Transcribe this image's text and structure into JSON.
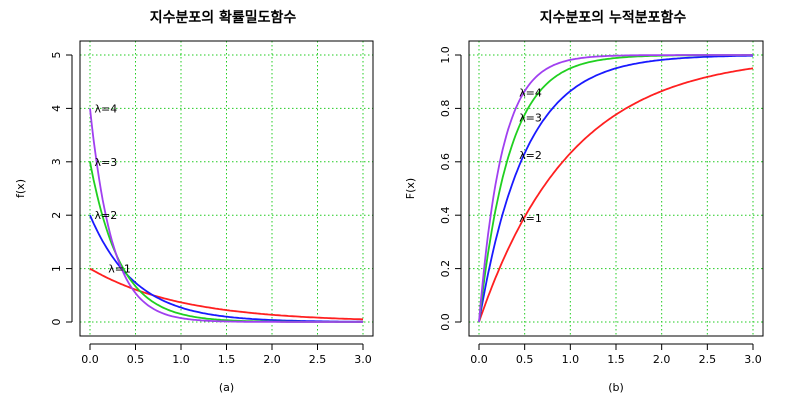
{
  "chart_data": [
    {
      "type": "line",
      "title": "지수분포의 확률밀도함수",
      "xlabel": "(a)",
      "ylabel": "f(x)",
      "xlim": [
        0,
        3
      ],
      "ylim": [
        0,
        5
      ],
      "xticks": [
        "0.0",
        "0.5",
        "1.0",
        "1.5",
        "2.0",
        "2.5",
        "3.0"
      ],
      "yticks": [
        "0",
        "1",
        "2",
        "3",
        "4",
        "5"
      ],
      "grid": true,
      "function": "lambda * exp(-lambda * x)",
      "series": [
        {
          "name": "λ=1",
          "lambda": 1,
          "color": "#ff2020",
          "x": [
            0,
            0.5,
            1.0,
            1.5,
            2.0,
            2.5,
            3.0
          ],
          "values": [
            1.0,
            0.607,
            0.368,
            0.223,
            0.135,
            0.082,
            0.05
          ]
        },
        {
          "name": "λ=2",
          "lambda": 2,
          "color": "#1a1aff",
          "x": [
            0,
            0.5,
            1.0,
            1.5,
            2.0,
            2.5,
            3.0
          ],
          "values": [
            2.0,
            0.736,
            0.271,
            0.1,
            0.037,
            0.013,
            0.005
          ]
        },
        {
          "name": "λ=3",
          "lambda": 3,
          "color": "#20d020",
          "x": [
            0,
            0.5,
            1.0,
            1.5,
            2.0,
            2.5,
            3.0
          ],
          "values": [
            3.0,
            0.669,
            0.149,
            0.033,
            0.007,
            0.002,
            0.0
          ]
        },
        {
          "name": "λ=4",
          "lambda": 4,
          "color": "#a040f0",
          "x": [
            0,
            0.5,
            1.0,
            1.5,
            2.0,
            2.5,
            3.0
          ],
          "values": [
            4.0,
            0.541,
            0.073,
            0.01,
            0.001,
            0.0,
            0.0
          ]
        }
      ],
      "annotations": [
        {
          "text": "λ=4",
          "x": 0.05,
          "y": 4.0
        },
        {
          "text": "λ=3",
          "x": 0.05,
          "y": 3.0
        },
        {
          "text": "λ=2",
          "x": 0.05,
          "y": 2.0
        },
        {
          "text": "λ=1",
          "x": 0.2,
          "y": 1.0
        }
      ]
    },
    {
      "type": "line",
      "title": "지수분포의 누적분포함수",
      "xlabel": "(b)",
      "ylabel": "F(x)",
      "xlim": [
        0,
        3
      ],
      "ylim": [
        0,
        1
      ],
      "xticks": [
        "0.0",
        "0.5",
        "1.0",
        "1.5",
        "2.0",
        "2.5",
        "3.0"
      ],
      "yticks": [
        "0.0",
        "0.2",
        "0.4",
        "0.6",
        "0.8",
        "1.0"
      ],
      "grid": true,
      "function": "1 - exp(-lambda * x)",
      "series": [
        {
          "name": "λ=1",
          "lambda": 1,
          "color": "#ff2020",
          "x": [
            0,
            0.5,
            1.0,
            1.5,
            2.0,
            2.5,
            3.0
          ],
          "values": [
            0.0,
            0.393,
            0.632,
            0.777,
            0.865,
            0.918,
            0.95
          ]
        },
        {
          "name": "λ=2",
          "lambda": 2,
          "color": "#1a1aff",
          "x": [
            0,
            0.5,
            1.0,
            1.5,
            2.0,
            2.5,
            3.0
          ],
          "values": [
            0.0,
            0.632,
            0.865,
            0.95,
            0.982,
            0.993,
            0.998
          ]
        },
        {
          "name": "λ=3",
          "lambda": 3,
          "color": "#20d020",
          "x": [
            0,
            0.5,
            1.0,
            1.5,
            2.0,
            2.5,
            3.0
          ],
          "values": [
            0.0,
            0.777,
            0.95,
            0.989,
            0.998,
            0.999,
            1.0
          ]
        },
        {
          "name": "λ=4",
          "lambda": 4,
          "color": "#a040f0",
          "x": [
            0,
            0.5,
            1.0,
            1.5,
            2.0,
            2.5,
            3.0
          ],
          "values": [
            0.0,
            0.865,
            0.982,
            0.998,
            1.0,
            1.0,
            1.0
          ]
        }
      ],
      "annotations": [
        {
          "text": "λ=4",
          "x": 0.44,
          "y": 0.86
        },
        {
          "text": "λ=3",
          "x": 0.44,
          "y": 0.765
        },
        {
          "text": "λ=2",
          "x": 0.44,
          "y": 0.625
        },
        {
          "text": "λ=1",
          "x": 0.44,
          "y": 0.39
        }
      ]
    }
  ]
}
